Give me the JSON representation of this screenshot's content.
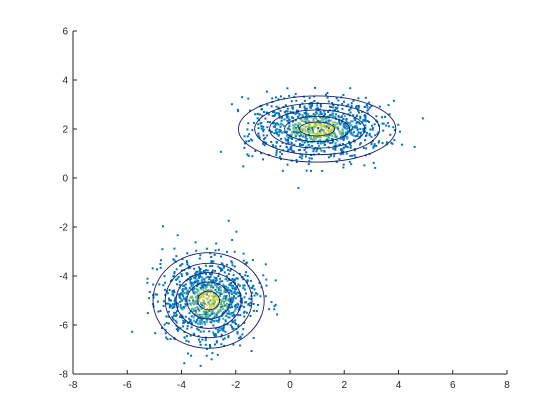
{
  "chart_data": {
    "type": "scatter",
    "title": "",
    "xlabel": "",
    "ylabel": "",
    "xlim": [
      -8,
      8
    ],
    "ylim": [
      -8,
      6
    ],
    "x_ticks": [
      "-8",
      "-6",
      "-4",
      "-2",
      "0",
      "2",
      "4",
      "6",
      "8"
    ],
    "y_ticks": [
      "-8",
      "-6",
      "-4",
      "-2",
      "0",
      "2",
      "4",
      "6"
    ],
    "grid": false,
    "box": false,
    "colors": {
      "low_density": "#0072BD",
      "mid_density": "#2FA5C8",
      "high_density": "#7CC46A",
      "peak_density": "#D4D43A",
      "contour": "#1A1A6E",
      "axis": "#262626"
    },
    "series": [
      {
        "cluster": 1,
        "center": [
          1.0,
          2.0
        ],
        "spread": [
          1.2,
          0.6
        ],
        "approx_points": 1000,
        "contours": [
          {
            "rx": 2.9,
            "ry": 1.35
          },
          {
            "rx": 2.3,
            "ry": 1.05
          },
          {
            "rx": 1.75,
            "ry": 0.78
          },
          {
            "rx": 1.2,
            "ry": 0.52
          },
          {
            "rx": 0.65,
            "ry": 0.28
          }
        ]
      },
      {
        "cluster": 2,
        "center": [
          -3.0,
          -5.0
        ],
        "spread": [
          0.85,
          0.85
        ],
        "approx_points": 1000,
        "contours": [
          {
            "rx": 2.05,
            "ry": 1.95
          },
          {
            "rx": 1.6,
            "ry": 1.52
          },
          {
            "rx": 1.2,
            "ry": 1.14
          },
          {
            "rx": 0.8,
            "ry": 0.76
          },
          {
            "rx": 0.4,
            "ry": 0.38
          }
        ]
      }
    ]
  }
}
